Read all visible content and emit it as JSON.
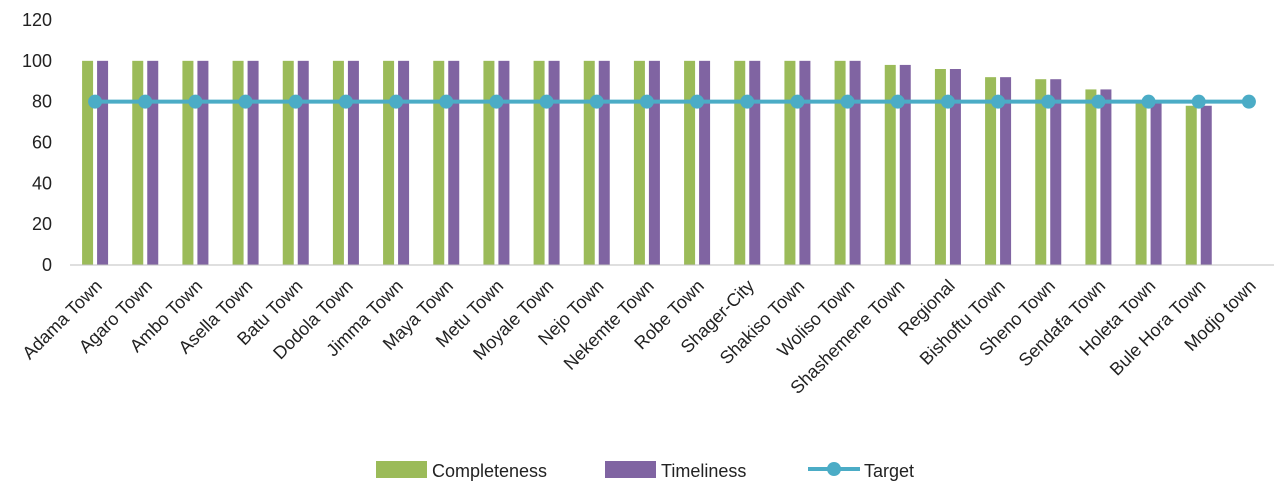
{
  "chart_data": {
    "type": "bar",
    "categories": [
      "Adama Town",
      "Agaro Town",
      "Ambo Town",
      "Asella Town",
      "Batu Town",
      "Dodola Town",
      "Jimma Town",
      "Maya Town",
      "Metu Town",
      "Moyale Town",
      "Nejo Town",
      "Nekemte Town",
      "Robe Town",
      "Shager-City",
      "Shakiso Town",
      "Woliso Town",
      "Shashemene Town",
      "Regional",
      "Bishoftu Town",
      "Sheno Town",
      "Sendafa Town",
      "Holeta Town",
      "Bule Hora Town",
      "Modjo town"
    ],
    "series": [
      {
        "name": "Completeness",
        "kind": "bar",
        "color": "#9BBB59",
        "values": [
          100,
          100,
          100,
          100,
          100,
          100,
          100,
          100,
          100,
          100,
          100,
          100,
          100,
          100,
          100,
          100,
          98,
          96,
          92,
          91,
          86,
          80,
          78,
          null
        ]
      },
      {
        "name": "Timeliness",
        "kind": "bar",
        "color": "#8064A2",
        "values": [
          100,
          100,
          100,
          100,
          100,
          100,
          100,
          100,
          100,
          100,
          100,
          100,
          100,
          100,
          100,
          100,
          98,
          96,
          92,
          91,
          86,
          80,
          78,
          null
        ]
      },
      {
        "name": "Target",
        "kind": "line",
        "color": "#4BACC6",
        "values": [
          80,
          80,
          80,
          80,
          80,
          80,
          80,
          80,
          80,
          80,
          80,
          80,
          80,
          80,
          80,
          80,
          80,
          80,
          80,
          80,
          80,
          80,
          80,
          80
        ]
      }
    ],
    "y_ticks": [
      "0",
      "20",
      "40",
      "60",
      "80",
      "100",
      "120"
    ],
    "ylim": [
      0,
      120
    ],
    "grid": false,
    "legend_position": "bottom"
  }
}
